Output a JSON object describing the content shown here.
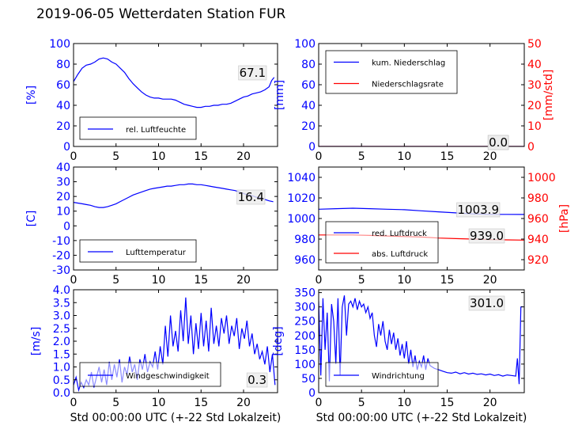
{
  "title": "2019-06-05 Wetterdaten Station FUR",
  "xlabel": "Std 00:00:00 UTC (+-22 Std Lokalzeit)",
  "colors": {
    "primary": "#0000ff",
    "secondary": "#ff0000",
    "legend_fill": "#ffffff"
  },
  "chart_data": [
    {
      "type": "line",
      "xlim": [
        0,
        24
      ],
      "ylim": [
        0,
        100
      ],
      "x_ticks": [
        0,
        5,
        10,
        15,
        20
      ],
      "y_ticks": [
        0,
        20,
        40,
        60,
        80,
        100
      ],
      "ylabel": "[%]",
      "annotation": "67.1",
      "legend_loc": "lower-left",
      "series": [
        {
          "name": "rel. Luftfeuchte",
          "axis": "left",
          "color": "#0000ff",
          "x": [
            0,
            0.5,
            1,
            1.5,
            2,
            2.5,
            3,
            3.5,
            4,
            4.5,
            5,
            5.5,
            6,
            6.5,
            7,
            7.5,
            8,
            8.5,
            9,
            9.5,
            10,
            10.5,
            11,
            11.5,
            12,
            12.5,
            13,
            13.5,
            14,
            14.5,
            15,
            15.5,
            16,
            16.5,
            17,
            17.5,
            18,
            18.5,
            19,
            19.5,
            20,
            20.5,
            21,
            21.5,
            22,
            22.5,
            23,
            23.3,
            23.6
          ],
          "y": [
            63,
            70,
            76,
            79,
            80,
            82,
            85,
            86,
            85,
            82,
            80,
            76,
            72,
            66,
            61,
            57,
            53,
            50,
            48,
            47,
            47,
            46,
            46,
            46,
            45,
            43,
            41,
            40,
            39,
            38,
            38,
            39,
            39,
            40,
            40,
            41,
            41,
            42,
            44,
            46,
            48,
            49,
            51,
            52,
            53,
            55,
            58,
            64,
            67.1
          ]
        }
      ]
    },
    {
      "type": "line",
      "xlim": [
        0,
        24
      ],
      "ylim": [
        0,
        100
      ],
      "y2lim": [
        0,
        50
      ],
      "x_ticks": [
        0,
        5,
        10,
        15,
        20
      ],
      "y_ticks": [
        0,
        20,
        40,
        60,
        80,
        100
      ],
      "y2_ticks": [
        0,
        10,
        20,
        30,
        40,
        50
      ],
      "ylabel": "[mm]",
      "y2label": "[mm/std]",
      "annotation": "0.0",
      "annotation2": "0.0",
      "legend_loc": "upper-left",
      "series": [
        {
          "name": "kum. Niederschlag",
          "axis": "left",
          "color": "#0000ff",
          "x": [
            0,
            24
          ],
          "y": [
            0,
            0
          ]
        },
        {
          "name": "Niederschlagsrate",
          "axis": "right",
          "color": "#ff0000",
          "x": [
            0,
            24
          ],
          "y": [
            0,
            0
          ]
        }
      ]
    },
    {
      "type": "line",
      "xlim": [
        0,
        24
      ],
      "ylim": [
        -30,
        40
      ],
      "x_ticks": [
        0,
        5,
        10,
        15,
        20
      ],
      "y_ticks": [
        -30,
        -20,
        -10,
        0,
        10,
        20,
        30,
        40
      ],
      "ylabel": "[C]",
      "annotation": "16.4",
      "legend_loc": "lower-left",
      "series": [
        {
          "name": "Lufttemperatur",
          "axis": "left",
          "color": "#0000ff",
          "x": [
            0,
            0.5,
            1,
            1.5,
            2,
            2.5,
            3,
            3.5,
            4,
            4.5,
            5,
            5.5,
            6,
            6.5,
            7,
            7.5,
            8,
            8.5,
            9,
            9.5,
            10,
            10.5,
            11,
            11.5,
            12,
            12.5,
            13,
            13.5,
            14,
            14.5,
            15,
            15.5,
            16,
            16.5,
            17,
            17.5,
            18,
            18.5,
            19,
            19.5,
            20,
            20.5,
            21,
            21.5,
            22,
            22.5,
            23,
            23.5
          ],
          "y": [
            16,
            15.5,
            15,
            14.5,
            14,
            13,
            12.5,
            12.5,
            13,
            14,
            15,
            16.5,
            18,
            19.5,
            21,
            22,
            23,
            24,
            25,
            25.5,
            26,
            26.5,
            27,
            27,
            27.5,
            28,
            28,
            28.5,
            28.5,
            28,
            28,
            27.5,
            27,
            26.5,
            26,
            25.5,
            25,
            24.5,
            24,
            23,
            22,
            21,
            20.5,
            19.5,
            19,
            18,
            17,
            16.4
          ]
        }
      ]
    },
    {
      "type": "line",
      "xlim": [
        0,
        24
      ],
      "ylim": [
        950,
        1050
      ],
      "y2lim": [
        910,
        1010
      ],
      "x_ticks": [
        0,
        5,
        10,
        15,
        20
      ],
      "y_ticks": [
        960,
        980,
        1000,
        1020,
        1040
      ],
      "y2_ticks": [
        920,
        940,
        960,
        980,
        1000
      ],
      "ylabel": "",
      "y2label": "[hPa]",
      "annotation": "1003.9",
      "annotation2": "939.0",
      "legend_loc": "lower-left",
      "series": [
        {
          "name": "red. Luftdruck",
          "axis": "left",
          "color": "#0000ff",
          "x": [
            0,
            2,
            4,
            6,
            8,
            10,
            12,
            14,
            16,
            18,
            20,
            22,
            24
          ],
          "y": [
            1009,
            1009.5,
            1010,
            1009.5,
            1009,
            1008.5,
            1007.5,
            1006.5,
            1005.5,
            1004.5,
            1004,
            1004,
            1003.9
          ]
        },
        {
          "name": "abs. Luftdruck",
          "axis": "right",
          "color": "#ff0000",
          "x": [
            0,
            2,
            4,
            6,
            8,
            10,
            12,
            14,
            16,
            18,
            20,
            22,
            24
          ],
          "y": [
            944,
            944,
            944,
            943.5,
            943,
            942.5,
            942,
            941,
            940.5,
            940,
            939.5,
            939.2,
            939.0
          ]
        }
      ]
    },
    {
      "type": "line",
      "xlim": [
        0,
        24
      ],
      "ylim": [
        0,
        4
      ],
      "x_ticks": [
        0,
        5,
        10,
        15,
        20
      ],
      "y_ticks": [
        0,
        0.5,
        1,
        1.5,
        2,
        2.5,
        3,
        3.5,
        4
      ],
      "y_tick_labels": [
        "0.0",
        "0.5",
        "1.0",
        "1.5",
        "2.0",
        "2.5",
        "3.0",
        "3.5",
        "4.0"
      ],
      "ylabel": "[m/s]",
      "annotation": "0.3",
      "legend_loc": "lower-left",
      "series": [
        {
          "name": "Windgeschwindigkeit",
          "axis": "left",
          "color": "#0000ff",
          "x": [
            0,
            0.3,
            0.6,
            0.9,
            1.2,
            1.5,
            1.8,
            2.1,
            2.4,
            2.7,
            3,
            3.3,
            3.6,
            3.9,
            4.2,
            4.5,
            4.8,
            5.1,
            5.4,
            5.7,
            6,
            6.3,
            6.6,
            6.9,
            7.2,
            7.5,
            7.8,
            8.1,
            8.4,
            8.7,
            9,
            9.3,
            9.6,
            9.9,
            10.2,
            10.5,
            10.8,
            11.1,
            11.4,
            11.7,
            12,
            12.3,
            12.6,
            12.9,
            13.2,
            13.5,
            13.8,
            14.1,
            14.4,
            14.7,
            15,
            15.3,
            15.6,
            15.9,
            16.2,
            16.5,
            16.8,
            17.1,
            17.4,
            17.7,
            18,
            18.3,
            18.6,
            18.9,
            19.2,
            19.5,
            19.8,
            20.1,
            20.4,
            20.7,
            21,
            21.3,
            21.6,
            21.9,
            22.2,
            22.5,
            22.8,
            23.1,
            23.4,
            23.7
          ],
          "y": [
            0.3,
            0.6,
            0.1,
            0.4,
            0.2,
            0.5,
            0.3,
            0.8,
            0.2,
            0.6,
            1.0,
            0.4,
            0.9,
            0.3,
            1.2,
            0.5,
            1.1,
            0.6,
            1.3,
            0.4,
            1.0,
            0.7,
            1.4,
            0.8,
            1.1,
            0.5,
            1.3,
            0.9,
            1.5,
            0.8,
            1.2,
            1.0,
            1.6,
            0.9,
            1.8,
            1.1,
            2.6,
            1.4,
            3.0,
            1.8,
            2.4,
            1.6,
            3.2,
            2.0,
            3.7,
            1.9,
            3.0,
            1.5,
            2.7,
            1.7,
            3.1,
            1.8,
            2.8,
            1.6,
            3.3,
            1.9,
            2.6,
            1.8,
            2.9,
            2.3,
            3.0,
            1.9,
            2.6,
            2.2,
            2.9,
            1.7,
            2.5,
            2.1,
            2.8,
            1.8,
            2.3,
            1.5,
            1.9,
            1.3,
            1.6,
            1.1,
            1.8,
            0.8,
            1.5,
            0.3
          ]
        }
      ]
    },
    {
      "type": "line",
      "xlim": [
        0,
        24
      ],
      "ylim": [
        0,
        360
      ],
      "x_ticks": [
        0,
        5,
        10,
        15,
        20
      ],
      "y_ticks": [
        0,
        50,
        100,
        150,
        200,
        250,
        300,
        350
      ],
      "ylabel": "[deg]",
      "annotation": "301.0",
      "legend_loc": "lower-left",
      "series": [
        {
          "name": "Windrichtung",
          "axis": "left",
          "color": "#0000ff",
          "x": [
            0,
            0.25,
            0.5,
            0.75,
            1,
            1.25,
            1.5,
            1.75,
            2,
            2.25,
            2.5,
            2.75,
            3,
            3.25,
            3.5,
            3.75,
            4,
            4.25,
            4.5,
            4.75,
            5,
            5.25,
            5.5,
            5.75,
            6,
            6.25,
            6.5,
            6.75,
            7,
            7.25,
            7.5,
            7.75,
            8,
            8.25,
            8.5,
            8.75,
            9,
            9.25,
            9.5,
            9.75,
            10,
            10.25,
            10.5,
            10.75,
            11,
            11.25,
            11.5,
            11.75,
            12,
            12.25,
            12.5,
            12.75,
            13,
            13.5,
            14,
            14.5,
            15,
            15.5,
            16,
            16.5,
            17,
            17.5,
            18,
            18.5,
            19,
            19.5,
            20,
            20.5,
            21,
            21.5,
            22,
            22.5,
            23,
            23.2,
            23.4,
            23.6,
            23.8
          ],
          "y": [
            320,
            60,
            330,
            150,
            280,
            40,
            310,
            250,
            100,
            330,
            60,
            300,
            340,
            200,
            310,
            320,
            300,
            330,
            290,
            320,
            300,
            310,
            280,
            300,
            260,
            280,
            200,
            160,
            240,
            200,
            250,
            180,
            150,
            220,
            170,
            210,
            150,
            190,
            130,
            170,
            120,
            180,
            100,
            150,
            90,
            130,
            80,
            110,
            90,
            130,
            80,
            120,
            95,
            85,
            80,
            75,
            70,
            68,
            72,
            66,
            70,
            65,
            68,
            64,
            66,
            62,
            65,
            60,
            63,
            58,
            62,
            60,
            58,
            120,
            30,
            300,
            301
          ]
        }
      ]
    }
  ]
}
